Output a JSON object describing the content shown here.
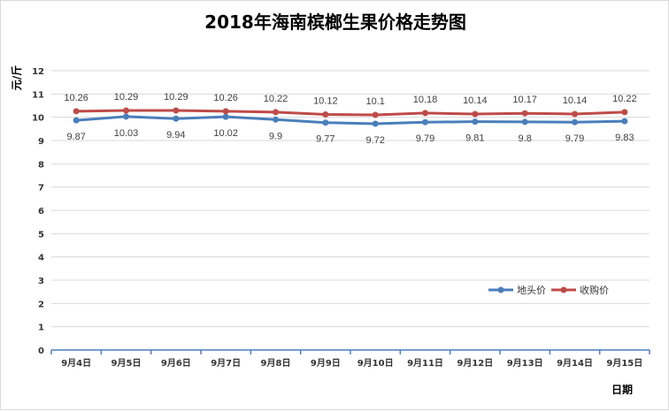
{
  "chart_data": {
    "type": "line",
    "title": "2018年海南槟榔生果价格走势图",
    "xlabel": "日期",
    "ylabel": "元/斤",
    "categories": [
      "9月4日",
      "9月5日",
      "9月6日",
      "9月7日",
      "9月8日",
      "9月9日",
      "9月10日",
      "9月11日",
      "9月12日",
      "9月13日",
      "9月14日",
      "9月15日"
    ],
    "ylim": [
      0,
      12
    ],
    "yticks": [
      0,
      1,
      2,
      3,
      4,
      5,
      6,
      7,
      8,
      9,
      10,
      11,
      12
    ],
    "grid": true,
    "legend_position": "right",
    "series": [
      {
        "name": "地头价",
        "color": "#4a7ebb",
        "values": [
          9.87,
          10.03,
          9.94,
          10.02,
          9.9,
          9.77,
          9.72,
          9.79,
          9.81,
          9.8,
          9.79,
          9.83
        ],
        "labels": [
          "9.87",
          "10.03",
          "9.94",
          "10.02",
          "9.9",
          "9.77",
          "9.72",
          "9.79",
          "9.81",
          "9.8",
          "9.79",
          "9.83"
        ],
        "label_position": "below"
      },
      {
        "name": "收购价",
        "color": "#be4b48",
        "values": [
          10.26,
          10.29,
          10.29,
          10.26,
          10.22,
          10.12,
          10.1,
          10.18,
          10.14,
          10.17,
          10.14,
          10.22
        ],
        "labels": [
          "10.26",
          "10.29",
          "10.29",
          "10.26",
          "10.22",
          "10.12",
          "10.1",
          "10.18",
          "10.14",
          "10.17",
          "10.14",
          "10.22"
        ],
        "label_position": "above"
      }
    ]
  }
}
